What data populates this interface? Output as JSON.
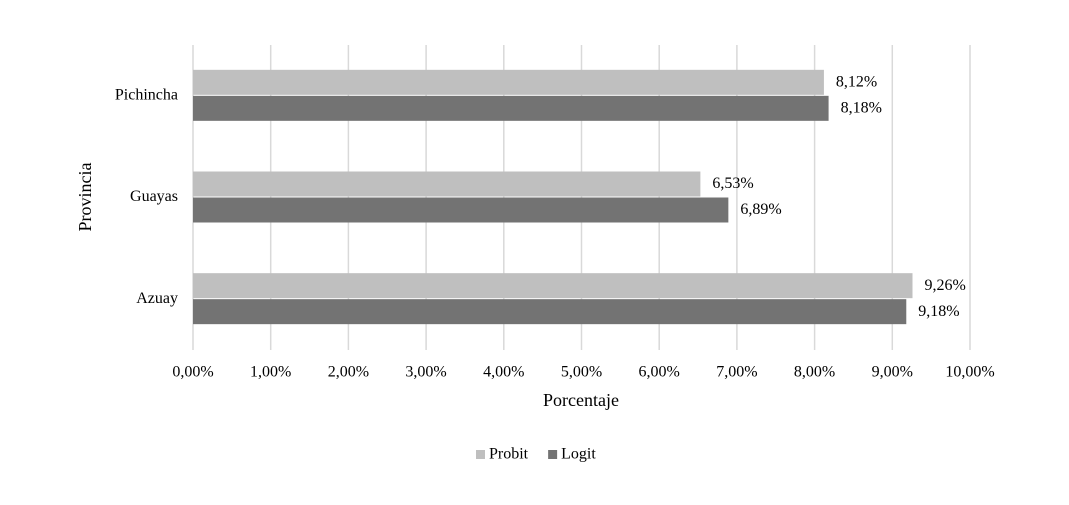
{
  "chart_data": {
    "type": "bar",
    "orientation": "horizontal",
    "categories": [
      "Pichincha",
      "Guayas",
      "Azuay"
    ],
    "series": [
      {
        "name": "Probit",
        "color": "#bfbfbf",
        "values": [
          8.12,
          6.53,
          9.26
        ],
        "value_labels": [
          "8,12%",
          "6,53%",
          "9,26%"
        ]
      },
      {
        "name": "Logit",
        "color": "#737373",
        "values": [
          8.18,
          6.89,
          9.18
        ],
        "value_labels": [
          "8,18%",
          "6,89%",
          "9,18%"
        ]
      }
    ],
    "xlabel": "Porcentaje",
    "ylabel": "Provincia",
    "xlim": [
      0,
      10
    ],
    "xticks": [
      {
        "value": 0,
        "label": "0,00%"
      },
      {
        "value": 1,
        "label": "1,00%"
      },
      {
        "value": 2,
        "label": "2,00%"
      },
      {
        "value": 3,
        "label": "3,00%"
      },
      {
        "value": 4,
        "label": "4,00%"
      },
      {
        "value": 5,
        "label": "5,00%"
      },
      {
        "value": 6,
        "label": "6,00%"
      },
      {
        "value": 7,
        "label": "7,00%"
      },
      {
        "value": 8,
        "label": "8,00%"
      },
      {
        "value": 9,
        "label": "9,00%"
      },
      {
        "value": 10,
        "label": "10,00%"
      }
    ],
    "grid": true,
    "legend": "bottom"
  }
}
